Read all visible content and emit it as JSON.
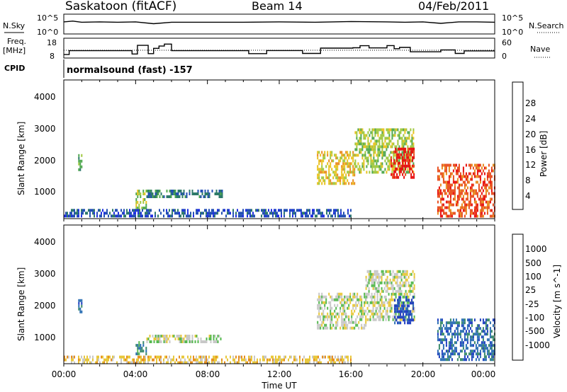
{
  "header": {
    "station": "Saskatoon (fitACF)",
    "beam": "Beam 14",
    "date": "04/Feb/2011"
  },
  "top_panels": {
    "nsky_label": "N.Sky",
    "nsky_ticks": [
      "10^5",
      "10^0"
    ],
    "nsearch_label": "N.Search",
    "nsearch_ticks": [
      "10^5",
      "10^0"
    ],
    "freq_label_line1": "Freq.",
    "freq_label_line2": "[MHz]",
    "freq_ticks": [
      "18",
      "8"
    ],
    "nave_label": "Nave",
    "nave_ticks": [
      "60",
      "0"
    ],
    "cpid_label": "CPID",
    "cpid_text": "normalsound (fast) -157"
  },
  "xaxis": {
    "label": "Time UT",
    "ticks": [
      "00:00",
      "04:00",
      "08:00",
      "12:00",
      "16:00",
      "20:00",
      "00:00"
    ]
  },
  "power_panel": {
    "ylabel": "Slant Range [km]",
    "yticks": [
      "4000",
      "3000",
      "2000",
      "1000"
    ],
    "colorbar_label": "Power [dB]",
    "colorbar_ticks": [
      "28",
      "24",
      "20",
      "16",
      "12",
      "8",
      "4"
    ],
    "colors": [
      "#1f2fe0",
      "#234fb4",
      "#2e7a6a",
      "#4fa84f",
      "#9fc83f",
      "#e9c21f",
      "#e98b1f",
      "#e94f1f",
      "#e81010"
    ]
  },
  "velocity_panel": {
    "ylabel": "Slant Range [km]",
    "yticks": [
      "4000",
      "3000",
      "2000",
      "1000"
    ],
    "colorbar_label": "Velocity [m s^-1]",
    "colorbar_ticks": [
      "1000",
      "500",
      "100",
      "25",
      "-25",
      "-100",
      "-500",
      "-1000"
    ],
    "colors": [
      "#1f3fc0",
      "#2c6fb4",
      "#3a8a6a",
      "#55b94f",
      "#c8c8c8",
      "#e8c83a",
      "#e8901f",
      "#e8501a",
      "#e81010"
    ]
  },
  "chart_data": [
    {
      "type": "line",
      "title": "Saskatoon (fitACF)",
      "panel": "N.Sky / N.Search",
      "x_range_hours": [
        0,
        24
      ],
      "series": [
        {
          "name": "N.Sky",
          "x": [
            0,
            0.5,
            1,
            2,
            3,
            4,
            5,
            6,
            8,
            10,
            12,
            14,
            16,
            18,
            19,
            20,
            21,
            22,
            23,
            24
          ],
          "y": [
            3.1,
            3.3,
            3.0,
            3.1,
            3.0,
            3.1,
            2.6,
            3.0,
            3.0,
            3.0,
            3.1,
            3.0,
            3.2,
            3.1,
            3.0,
            3.1,
            2.7,
            3.1,
            3.1,
            3.0
          ]
        }
      ],
      "yticks": [
        "10^5",
        "10^0"
      ]
    },
    {
      "type": "line",
      "panel": "Freq. [MHz] / Nave",
      "x_range_hours": [
        0,
        24
      ],
      "series": [
        {
          "name": "Freq.",
          "x": [
            0,
            0.3,
            3.8,
            4.1,
            4.7,
            5.0,
            5.3,
            5.6,
            6.0,
            10.3,
            11.3,
            13.3,
            14.3,
            16.1,
            16.5,
            17.0,
            18.0,
            18.4,
            18.7,
            19.3,
            21.0,
            21.8,
            22.3,
            24
          ],
          "y": [
            9.5,
            11.6,
            9.8,
            14.5,
            10.0,
            12.9,
            14.1,
            15.2,
            11.6,
            10.0,
            11.7,
            10.1,
            13.0,
            13.2,
            14.3,
            13.1,
            14.4,
            12.7,
            13.4,
            11.0,
            12.0,
            10.1,
            11.5,
            11.5
          ]
        }
      ],
      "yticks": [
        "18",
        "8"
      ],
      "right_ticks": [
        "60",
        "0"
      ]
    },
    {
      "type": "heatmap",
      "panel": "Power [dB]",
      "ylabel": "Slant Range [km]",
      "xlabel": "Time UT",
      "x_range_hours": [
        0,
        24
      ],
      "ylim": [
        200,
        4500
      ],
      "colorbar": "Power [dB]",
      "colorbar_ticks": [
        28,
        24,
        20,
        16,
        12,
        8,
        4
      ],
      "regions": [
        {
          "t0": 0.8,
          "t1": 1.0,
          "r0": 1700,
          "r1": 2200,
          "level": 3
        },
        {
          "t0": 4.0,
          "t1": 4.6,
          "r0": 500,
          "r1": 1100,
          "level": 4
        },
        {
          "t0": 4.6,
          "t1": 8.8,
          "r0": 850,
          "r1": 1100,
          "level": 2
        },
        {
          "t0": 14.1,
          "t1": 16.2,
          "r0": 1300,
          "r1": 2300,
          "level": 5
        },
        {
          "t0": 16.2,
          "t1": 19.5,
          "r0": 1600,
          "r1": 3000,
          "level": 4
        },
        {
          "t0": 18.2,
          "t1": 19.5,
          "r0": 1500,
          "r1": 2400,
          "level": 8
        },
        {
          "t0": 20.8,
          "t1": 24,
          "r0": 300,
          "r1": 1900,
          "level": 7
        },
        {
          "t0": 0,
          "t1": 16,
          "r0": 250,
          "r1": 500,
          "level": 1
        }
      ]
    },
    {
      "type": "heatmap",
      "panel": "Velocity",
      "ylabel": "Slant Range [km]",
      "xlabel": "Time UT",
      "x_range_hours": [
        0,
        24
      ],
      "ylim": [
        200,
        4500
      ],
      "colorbar": "Velocity [m s^-1]",
      "colorbar_ticks": [
        1000,
        500,
        100,
        25,
        -25,
        -100,
        -500,
        -1000
      ],
      "regions": [
        {
          "t0": 0.8,
          "t1": 1.0,
          "r0": 1800,
          "r1": 2200,
          "level": 1
        },
        {
          "t0": 4.0,
          "t1": 4.6,
          "r0": 500,
          "r1": 900,
          "level": 2
        },
        {
          "t0": 4.6,
          "t1": 8.8,
          "r0": 850,
          "r1": 1100,
          "level": 4
        },
        {
          "t0": 14.1,
          "t1": 16.8,
          "r0": 1300,
          "r1": 2400,
          "level": 4
        },
        {
          "t0": 16.8,
          "t1": 19.5,
          "r0": 1600,
          "r1": 3100,
          "level": 4
        },
        {
          "t0": 18.4,
          "t1": 19.5,
          "r0": 1500,
          "r1": 2300,
          "level": 0
        },
        {
          "t0": 20.8,
          "t1": 24,
          "r0": 300,
          "r1": 1600,
          "level": 1
        },
        {
          "t0": 0,
          "t1": 16,
          "r0": 250,
          "r1": 450,
          "level": 5
        }
      ]
    }
  ]
}
